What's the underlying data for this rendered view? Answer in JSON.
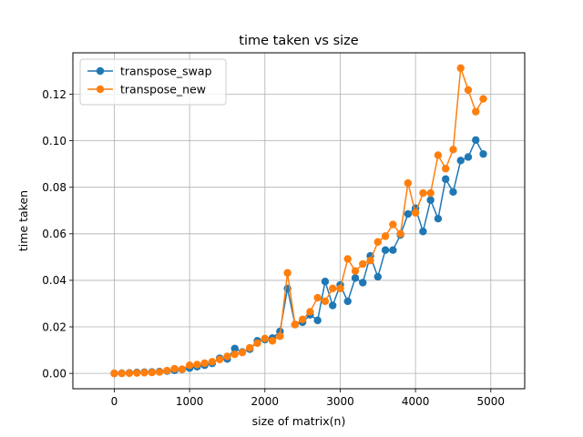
{
  "chart_data": {
    "type": "line",
    "title": "time taken vs size",
    "xlabel": "size of matrix(n)",
    "ylabel": "time taken",
    "xlim": [
      -550,
      5450
    ],
    "ylim": [
      -0.0066,
      0.1378
    ],
    "xticks": [
      0,
      1000,
      2000,
      3000,
      4000,
      5000
    ],
    "xtick_labels": [
      "0",
      "1000",
      "2000",
      "3000",
      "4000",
      "5000"
    ],
    "yticks": [
      0.0,
      0.02,
      0.04,
      0.06,
      0.08,
      0.1,
      0.12
    ],
    "ytick_labels": [
      "0.00",
      "0.02",
      "0.04",
      "0.06",
      "0.08",
      "0.10",
      "0.12"
    ],
    "grid": true,
    "legend_position": "top-left",
    "x": [
      0,
      100,
      200,
      300,
      400,
      500,
      600,
      700,
      800,
      900,
      1000,
      1100,
      1200,
      1300,
      1400,
      1500,
      1600,
      1700,
      1800,
      1900,
      2000,
      2100,
      2200,
      2300,
      2400,
      2500,
      2600,
      2700,
      2800,
      2900,
      3000,
      3100,
      3200,
      3300,
      3400,
      3500,
      3600,
      3700,
      3800,
      3900,
      4000,
      4100,
      4200,
      4300,
      4400,
      4500,
      4600,
      4700,
      4800,
      4900
    ],
    "series": [
      {
        "name": "transpose_swap",
        "color": "#1f77b4",
        "values": [
          0.0,
          0.0001,
          0.0002,
          0.0004,
          0.0005,
          0.0006,
          0.0008,
          0.001,
          0.0013,
          0.0017,
          0.0023,
          0.0029,
          0.0035,
          0.0043,
          0.0065,
          0.0062,
          0.0107,
          0.0092,
          0.0104,
          0.014,
          0.0145,
          0.0152,
          0.018,
          0.0365,
          0.021,
          0.022,
          0.0252,
          0.0228,
          0.0395,
          0.0292,
          0.038,
          0.031,
          0.041,
          0.039,
          0.0505,
          0.0415,
          0.053,
          0.053,
          0.0595,
          0.0685,
          0.071,
          0.061,
          0.0745,
          0.0665,
          0.0835,
          0.078,
          0.0915,
          0.093,
          0.1003,
          0.0943
        ]
      },
      {
        "name": "transpose_new",
        "color": "#ff7f0e",
        "values": [
          0.0,
          0.0,
          0.0001,
          0.0002,
          0.0003,
          0.0004,
          0.0006,
          0.0012,
          0.002,
          0.0018,
          0.0035,
          0.0038,
          0.0044,
          0.005,
          0.006,
          0.0073,
          0.0082,
          0.009,
          0.011,
          0.013,
          0.015,
          0.014,
          0.016,
          0.0432,
          0.021,
          0.0232,
          0.0265,
          0.0325,
          0.031,
          0.0365,
          0.0365,
          0.0492,
          0.044,
          0.047,
          0.0485,
          0.0565,
          0.059,
          0.064,
          0.06,
          0.0818,
          0.069,
          0.0775,
          0.0775,
          0.0938,
          0.088,
          0.0962,
          0.1312,
          0.1218,
          0.1125,
          0.118
        ]
      }
    ]
  }
}
